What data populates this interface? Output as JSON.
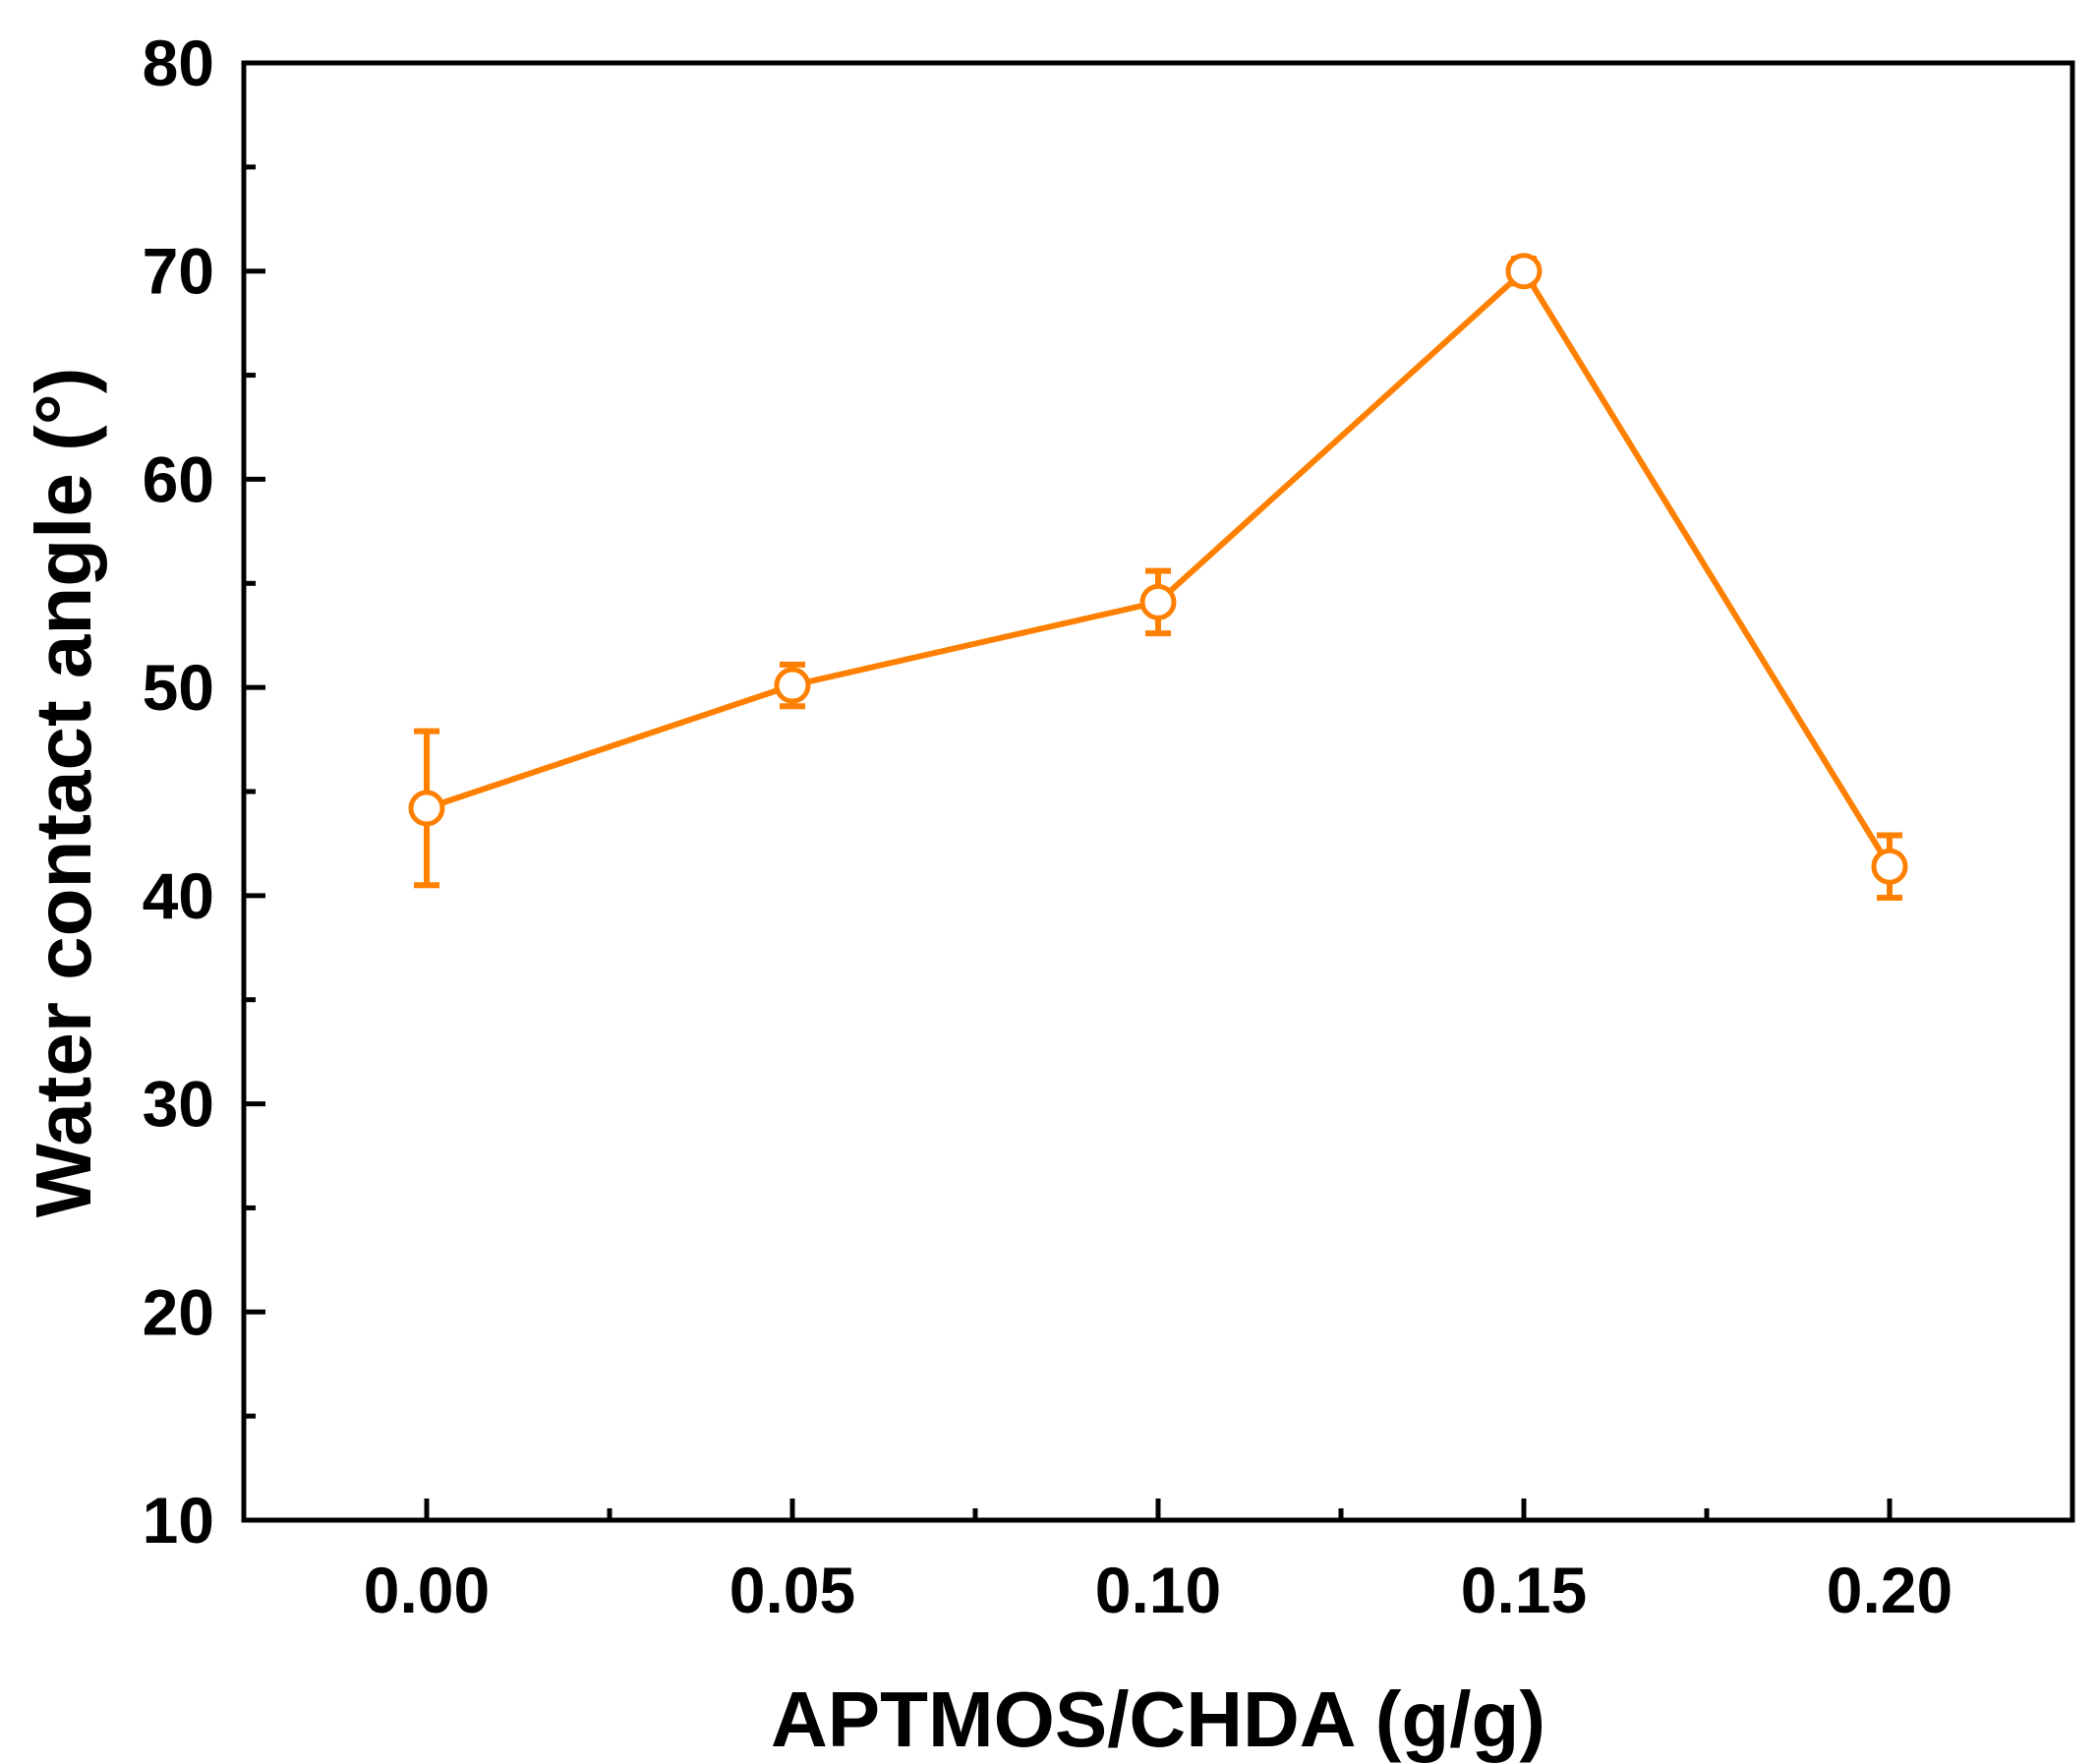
{
  "chart_data": {
    "type": "line",
    "title": "",
    "xlabel": "APTMOS/CHDA (g/g)",
    "ylabel": "Water contact angle (°)",
    "xlim": [
      -0.025,
      0.225
    ],
    "ylim": [
      10,
      80
    ],
    "x_ticks": [
      0.0,
      0.05,
      0.1,
      0.15,
      0.2
    ],
    "x_tick_labels": [
      "0.00",
      "0.05",
      "0.10",
      "0.15",
      "0.20"
    ],
    "x_minor_ticks": [
      0.025,
      0.075,
      0.125,
      0.175
    ],
    "y_ticks": [
      10,
      20,
      30,
      40,
      50,
      60,
      70,
      80
    ],
    "y_tick_labels": [
      "10",
      "20",
      "30",
      "40",
      "50",
      "60",
      "70",
      "80"
    ],
    "y_minor_ticks": [
      15,
      25,
      35,
      45,
      55,
      65,
      75
    ],
    "grid": false,
    "legend": "none",
    "series": [
      {
        "color": "#FF8000",
        "marker": "open-circle",
        "x": [
          0.0,
          0.05,
          0.1,
          0.15,
          0.2
        ],
        "y": [
          44.2,
          50.1,
          54.1,
          70.0,
          41.4
        ],
        "error": [
          3.7,
          1.0,
          1.5,
          0.6,
          1.5
        ]
      }
    ]
  }
}
